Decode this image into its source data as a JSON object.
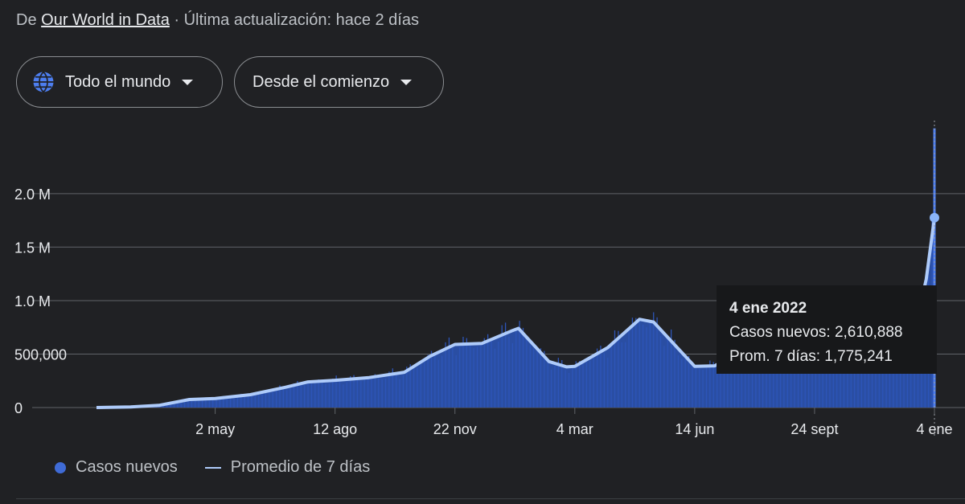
{
  "source": {
    "prefix": "De",
    "name": "Our World in Data",
    "updated": "· Última actualización: hace 2 días"
  },
  "filters": {
    "region": "Todo el mundo",
    "range": "Desde el comienzo"
  },
  "tooltip": {
    "date": "4 ene 2022",
    "line1": "Casos nuevos: 2,610,888",
    "line2": "Prom. 7 días: 1,775,241"
  },
  "legend": {
    "series1": "Casos nuevos",
    "series2": "Promedio de 7 días"
  },
  "colors": {
    "bars": "#2d55b8",
    "area": "#2a4ea3",
    "line": "#aecbfa",
    "grid": "#5f6368",
    "background": "#202124"
  },
  "chart_data": {
    "type": "area",
    "y_ticks": [
      "0",
      "500,000",
      "1.0 M",
      "1.5 M",
      "2.0 M"
    ],
    "y_tick_values": [
      0,
      500000,
      1000000,
      1500000,
      2000000
    ],
    "ylim": [
      0,
      2300000
    ],
    "x_ticks": [
      "2 may",
      "12 ago",
      "22 nov",
      "4 mar",
      "14 jun",
      "24 sept",
      "4 ene"
    ],
    "x_tick_dates": [
      "2020-05-02",
      "2020-08-12",
      "2020-11-22",
      "2021-03-04",
      "2021-06-14",
      "2021-09-24",
      "2022-01-04"
    ],
    "xlim": [
      "2020-01-22",
      "2022-01-04"
    ],
    "series": [
      {
        "name": "Promedio de 7 días",
        "points": [
          [
            "2020-01-22",
            0
          ],
          [
            "2020-02-20",
            5000
          ],
          [
            "2020-03-15",
            20000
          ],
          [
            "2020-04-10",
            75000
          ],
          [
            "2020-05-02",
            85000
          ],
          [
            "2020-06-01",
            120000
          ],
          [
            "2020-07-01",
            190000
          ],
          [
            "2020-07-20",
            240000
          ],
          [
            "2020-08-12",
            255000
          ],
          [
            "2020-09-10",
            280000
          ],
          [
            "2020-10-10",
            330000
          ],
          [
            "2020-11-01",
            480000
          ],
          [
            "2020-11-22",
            590000
          ],
          [
            "2020-12-15",
            600000
          ],
          [
            "2021-01-10",
            720000
          ],
          [
            "2021-01-15",
            740000
          ],
          [
            "2021-02-10",
            430000
          ],
          [
            "2021-02-25",
            380000
          ],
          [
            "2021-03-04",
            385000
          ],
          [
            "2021-04-01",
            560000
          ],
          [
            "2021-04-28",
            825000
          ],
          [
            "2021-05-10",
            800000
          ],
          [
            "2021-06-14",
            385000
          ],
          [
            "2021-07-01",
            390000
          ],
          [
            "2021-08-10",
            620000
          ],
          [
            "2021-09-24",
            560000
          ],
          [
            "2021-11-01",
            470000
          ],
          [
            "2021-12-01",
            600000
          ],
          [
            "2021-12-20",
            800000
          ],
          [
            "2021-12-28",
            1200000
          ],
          [
            "2022-01-04",
            1775241
          ]
        ]
      }
    ],
    "highlight": {
      "date": "2022-01-04",
      "casos_nuevos": 2610888,
      "promedio_7_dias": 1775241
    }
  }
}
